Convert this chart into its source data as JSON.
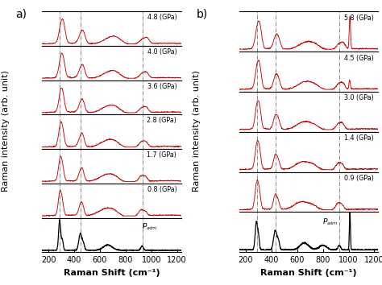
{
  "panel_a_label": "a)",
  "panel_b_label": "b)",
  "xlabel": "Raman Shift (cm⁻¹)",
  "ylabel": "Raman intensity (arb. unit)",
  "xmin": 150,
  "xmax": 1230,
  "panel_a_pressures": [
    "4.8 (GPa)",
    "4.0 (GPa)",
    "3.6 (GPa)",
    "2.8 (GPa)",
    "1.7 (GPa)",
    "0.8 (GPa)",
    "P_atm"
  ],
  "panel_b_pressures": [
    "5.8 (GPa)",
    "4.5 (GPa)",
    "3.0 (GPa)",
    "1.4 (GPa)",
    "0.9 (GPa)",
    "P_atm"
  ],
  "dashed_lines_a": [
    290,
    450,
    930
  ],
  "dashed_lines_b": [
    290,
    435,
    930
  ],
  "line_color_high": "#cc0000",
  "line_color_atm": "#000000",
  "background": "#ffffff",
  "tick_fontsize": 7,
  "label_fontsize": 8,
  "panel_label_fontsize": 10
}
